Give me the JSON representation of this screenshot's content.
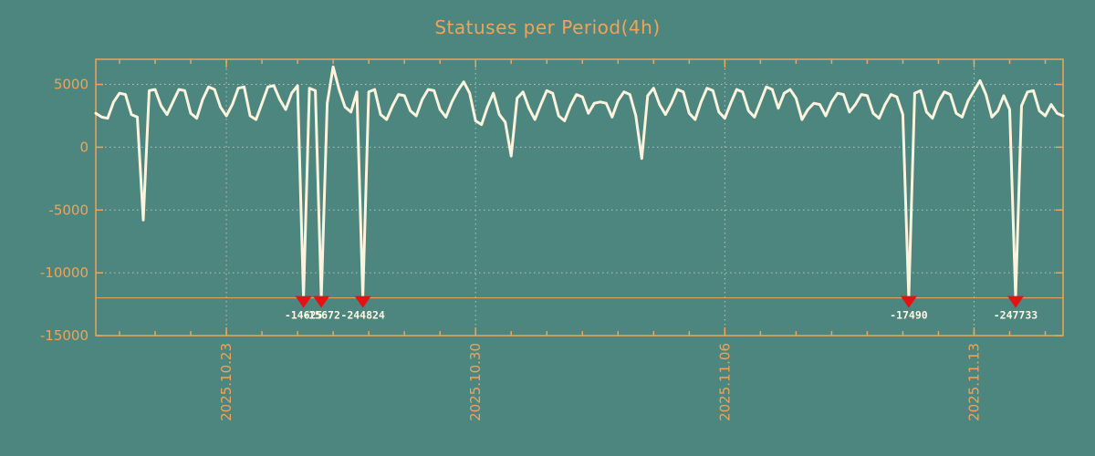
{
  "title": "Statuses per Period(4h)",
  "colors": {
    "background": "#4d867e",
    "axis_orange": "#f0a359",
    "series_line": "#fbf3dd",
    "grid_gray": "#b6c2be",
    "marker_red": "#e41212",
    "annotation_text": "#fdf6e4"
  },
  "chart_data": {
    "type": "line",
    "title": "Statuses per Period(4h)",
    "x_start": "2025.10.19 08:00",
    "step_hours": 4,
    "ylim": [
      -15000,
      7000
    ],
    "threshold_clip_line": -12000,
    "grid": "dotted",
    "legend": "none",
    "y_axis": {
      "ticks": [
        {
          "value": 5000,
          "label": "5000"
        },
        {
          "value": 0,
          "label": "0"
        },
        {
          "value": -5000,
          "label": "-5000"
        },
        {
          "value": -10000,
          "label": "-10000"
        },
        {
          "value": -15000,
          "label": "-15000"
        }
      ],
      "gridlines": [
        5000,
        0,
        -5000,
        -10000
      ]
    },
    "x_axis": {
      "major_ticks": [
        {
          "day_offset": 3.667,
          "label": "2025.10.23"
        },
        {
          "day_offset": 10.667,
          "label": "2025.10.30"
        },
        {
          "day_offset": 17.667,
          "label": "2025.11.06"
        },
        {
          "day_offset": 24.667,
          "label": "2025.11.13"
        }
      ],
      "first_minor_day": 0.667,
      "minor_tick_every_days": 1,
      "minor_tick_count": 27
    },
    "values": [
      2700,
      2400,
      2300,
      3600,
      4300,
      4200,
      2600,
      2400,
      -5800,
      4500,
      4600,
      3300,
      2600,
      3600,
      4600,
      4500,
      2700,
      2300,
      3800,
      4800,
      4600,
      3200,
      2500,
      3400,
      4700,
      4800,
      2500,
      2200,
      3500,
      4800,
      4900,
      3800,
      3000,
      4300,
      4900,
      -14625,
      4700,
      4500,
      -15672,
      3500,
      6400,
      4600,
      3200,
      2800,
      4400,
      -244824,
      4400,
      4600,
      2600,
      2200,
      3300,
      4200,
      4100,
      2900,
      2500,
      3800,
      4600,
      4500,
      3000,
      2400,
      3600,
      4500,
      5200,
      4300,
      2100,
      1800,
      3200,
      4300,
      2600,
      2000,
      -700,
      3900,
      4400,
      3100,
      2200,
      3400,
      4500,
      4300,
      2500,
      2100,
      3300,
      4200,
      4000,
      2700,
      3500,
      3600,
      3500,
      2400,
      3700,
      4400,
      4200,
      2500,
      -900,
      4100,
      4700,
      3400,
      2600,
      3500,
      4600,
      4400,
      2700,
      2200,
      3600,
      4700,
      4500,
      2800,
      2300,
      3500,
      4600,
      4400,
      2900,
      2400,
      3600,
      4800,
      4600,
      3100,
      4300,
      4600,
      3900,
      2200,
      3000,
      3500,
      3400,
      2500,
      3600,
      4300,
      4200,
      2800,
      3400,
      4200,
      4100,
      2700,
      2300,
      3400,
      4200,
      4000,
      2600,
      -17490,
      4300,
      4500,
      2800,
      2300,
      3600,
      4400,
      4200,
      2700,
      2400,
      3700,
      4500,
      5300,
      4200,
      2400,
      2900,
      4100,
      3000,
      -247733,
      3300,
      4400,
      4500,
      2900,
      2500,
      3400,
      2700,
      2500
    ],
    "annotations": [
      {
        "index": 35,
        "value": -14625,
        "label": "-14625"
      },
      {
        "index": 38,
        "value": -15672,
        "label": "-15672"
      },
      {
        "index": 45,
        "value": -244824,
        "label": "-244824"
      },
      {
        "index": 137,
        "value": -17490,
        "label": "-17490"
      },
      {
        "index": 155,
        "value": -247733,
        "label": "-247733"
      }
    ]
  }
}
